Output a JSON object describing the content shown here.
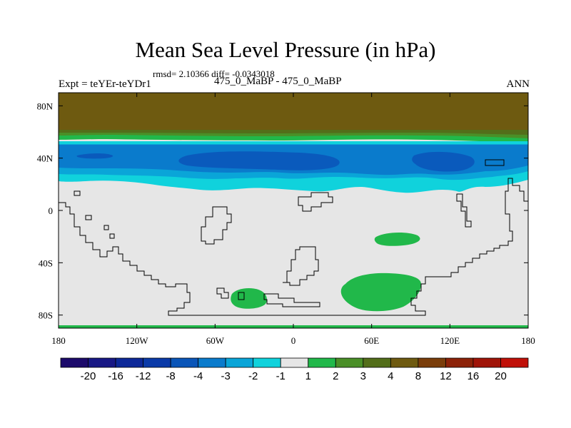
{
  "header": {
    "title": "Mean Sea Level Pressure (in hPa)",
    "stats": "rmsd= 2.10366 diff= -0.0343018",
    "experiment": "Expt = teYEr-teYDr1",
    "subtitle": "475_0_MaBP - 475_0_MaBP",
    "season": "ANN"
  },
  "chart_data": {
    "type": "heatmap",
    "title": "Mean Sea Level Pressure (in hPa)",
    "projection": "cylindrical-equidistant",
    "xlim": [
      -180,
      180
    ],
    "ylim": [
      -90,
      90
    ],
    "x_ticks": [
      {
        "value": -180,
        "label": "180"
      },
      {
        "value": -120,
        "label": "120W"
      },
      {
        "value": -60,
        "label": "60W"
      },
      {
        "value": 0,
        "label": "0"
      },
      {
        "value": 60,
        "label": "60E"
      },
      {
        "value": 120,
        "label": "120E"
      },
      {
        "value": 180,
        "label": "180"
      }
    ],
    "y_ticks": [
      {
        "value": 80,
        "label": "80N"
      },
      {
        "value": 40,
        "label": "40N"
      },
      {
        "value": 0,
        "label": "0"
      },
      {
        "value": -40,
        "label": "40S"
      },
      {
        "value": -80,
        "label": "80S"
      }
    ],
    "colorbar": {
      "labels": [
        "-20",
        "-16",
        "-12",
        "-8",
        "-4",
        "-3",
        "-2",
        "-1",
        "1",
        "2",
        "3",
        "4",
        "8",
        "12",
        "16",
        "20"
      ],
      "colors": [
        "#1c0a6b",
        "#181885",
        "#0d2898",
        "#0a3aa8",
        "#0a55b8",
        "#0a7bcc",
        "#0aa5d8",
        "#10d2dc",
        "#e6e6e6",
        "#21b84a",
        "#4a8f27",
        "#536e1a",
        "#6e5a10",
        "#7a3d0a",
        "#8c2208",
        "#a01408",
        "#c01008"
      ]
    },
    "background_value": "-1 to 1",
    "features": [
      {
        "name": "polar-cap",
        "range": "> 8",
        "color": "#6e5a10",
        "lat": [
          56,
          90
        ]
      },
      {
        "name": "northern-low-belt",
        "range": "-1 to -4",
        "lat": [
          18,
          46
        ],
        "min_class": "-4 to -3"
      },
      {
        "name": "tropical-positive-anomaly",
        "range": "1 to 2",
        "lon": [
          63,
          98
        ],
        "lat": [
          -25,
          -17
        ]
      },
      {
        "name": "southern-positive-anomaly-east",
        "range": "1 to 2",
        "lon": [
          37,
          100
        ],
        "lat": [
          -78,
          -50
        ]
      },
      {
        "name": "southern-positive-anomaly-west",
        "range": "1 to 2",
        "lon": [
          -47,
          -20
        ],
        "lat": [
          -77,
          -60
        ]
      },
      {
        "name": "south-pole-strip",
        "range": "1 to 2",
        "lat": [
          -90,
          -88
        ]
      }
    ]
  }
}
